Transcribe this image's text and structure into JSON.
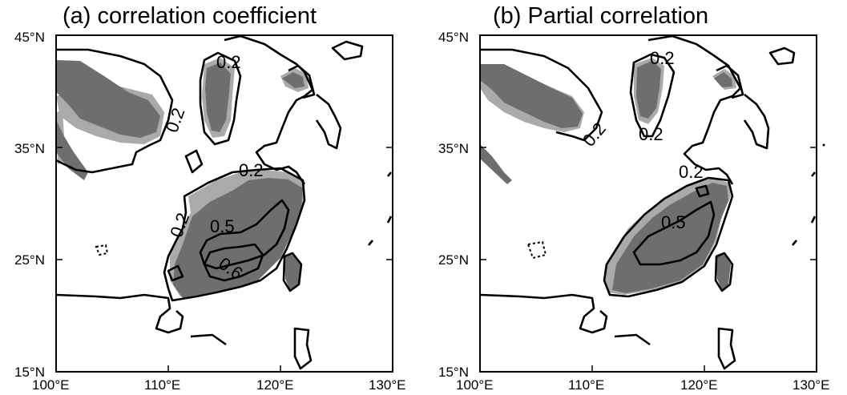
{
  "panels": [
    {
      "id": "a",
      "title": "(a) correlation coefficient",
      "contour_labels": [
        "0.2",
        "0.2",
        "0.2",
        "0.2",
        "0.5",
        "0.6"
      ]
    },
    {
      "id": "b",
      "title": "(b) Partial correlation",
      "contour_labels": [
        "0.2",
        "0.2",
        "0.2",
        "0.2",
        "0.5"
      ]
    }
  ],
  "axes": {
    "lon_ticks": [
      "100°E",
      "110°E",
      "120°E",
      "130°E"
    ],
    "lat_ticks": [
      "45°N",
      "35°N",
      "25°N",
      "15°N"
    ],
    "lon_range": [
      100,
      130
    ],
    "lat_range": [
      15,
      45
    ]
  },
  "colors": {
    "shade_dark": "#6e6e6e",
    "shade_light": "#aaaaaa",
    "lines": "#000000"
  }
}
